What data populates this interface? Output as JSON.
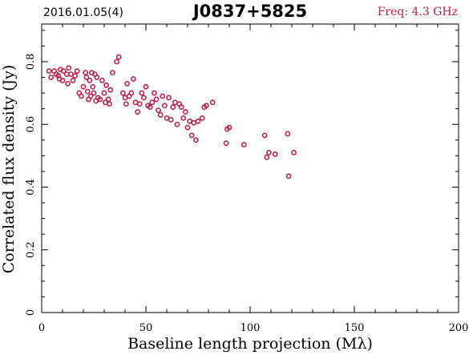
{
  "header": {
    "date": "2016.01.05(4)",
    "source": "J0837+5825",
    "freq": "Freq: 4.3 GHz"
  },
  "colors": {
    "points": "#b5224a",
    "freq_text": "#b5224a",
    "axes": "#000000"
  },
  "chart_data": {
    "type": "scatter",
    "xlabel": "Baseline length projection (Mλ)",
    "ylabel": "Correlated flux density (Jy)",
    "xlim": [
      0,
      200
    ],
    "ylim": [
      0,
      0.92
    ],
    "xticks": [
      0,
      50,
      100,
      150,
      200
    ],
    "yticks": [
      0,
      0.2,
      0.4,
      0.6,
      0.8
    ],
    "yticklabels": [
      "0",
      "0.2",
      "0.4",
      "0.6",
      "0.8"
    ],
    "marker": "open-circle",
    "x": [
      3.5,
      4.5,
      6,
      7,
      8,
      8.5,
      9,
      10,
      10.5,
      12,
      12.5,
      13,
      14,
      15,
      16,
      17,
      18,
      19,
      20,
      21,
      21.5,
      22,
      22.5,
      23,
      23.5,
      24,
      24.5,
      25,
      25.5,
      26,
      26.5,
      27,
      28,
      29,
      30,
      30.5,
      31,
      32,
      32.5,
      33,
      34,
      36,
      37,
      39,
      40,
      40.5,
      41,
      42,
      43,
      44,
      45,
      46,
      47,
      48,
      49,
      50,
      51,
      52,
      53,
      54,
      55,
      56,
      57,
      58,
      59,
      60,
      61,
      62,
      63,
      64,
      65,
      66,
      67,
      68,
      69,
      70,
      71,
      72,
      73,
      74,
      75,
      77,
      78,
      79,
      82,
      88.5,
      89,
      90,
      97,
      107,
      108,
      109,
      112,
      118,
      118.5,
      121
    ],
    "y": [
      0.77,
      0.75,
      0.77,
      0.76,
      0.755,
      0.745,
      0.775,
      0.74,
      0.77,
      0.76,
      0.73,
      0.78,
      0.76,
      0.74,
      0.755,
      0.77,
      0.7,
      0.69,
      0.72,
      0.765,
      0.75,
      0.705,
      0.68,
      0.74,
      0.69,
      0.765,
      0.72,
      0.7,
      0.76,
      0.675,
      0.75,
      0.685,
      0.68,
      0.74,
      0.7,
      0.67,
      0.725,
      0.68,
      0.665,
      0.71,
      0.765,
      0.8,
      0.815,
      0.7,
      0.685,
      0.665,
      0.73,
      0.69,
      0.7,
      0.745,
      0.67,
      0.64,
      0.665,
      0.7,
      0.685,
      0.72,
      0.66,
      0.655,
      0.67,
      0.7,
      0.68,
      0.645,
      0.63,
      0.69,
      0.66,
      0.62,
      0.685,
      0.615,
      0.655,
      0.67,
      0.6,
      0.665,
      0.655,
      0.62,
      0.64,
      0.59,
      0.61,
      0.565,
      0.605,
      0.55,
      0.61,
      0.62,
      0.655,
      0.66,
      0.67,
      0.54,
      0.585,
      0.59,
      0.535,
      0.565,
      0.495,
      0.51,
      0.505,
      0.57,
      0.435,
      0.51
    ]
  }
}
